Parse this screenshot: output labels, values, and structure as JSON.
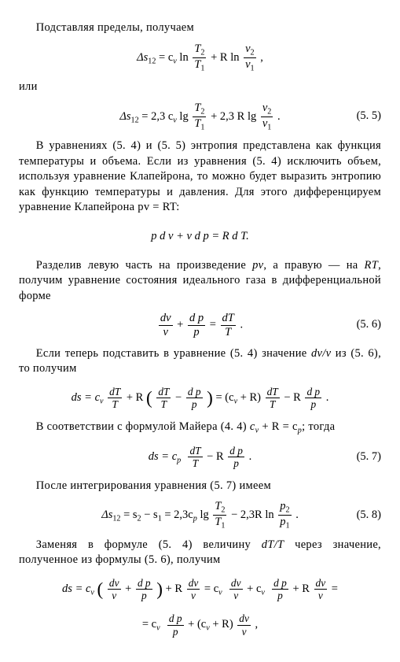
{
  "p1": "Подставляя пределы, получаем",
  "eq1_lhs": "Δs",
  "eq1_sub": "12",
  "eq1_a": "= c",
  "eq1_v": "v",
  "eq1_ln": " ln ",
  "eq1_T2": "T",
  "eq1_2": "2",
  "eq1_T1": "T",
  "eq1_1": "1",
  "eq1_plus": " + R ln ",
  "eq1_v2": "v",
  "eq1_v1": "v",
  "eq1_tail": " ,",
  "p2": "или",
  "eq2_a": "= 2,3 c",
  "eq2_lg": " lg ",
  "eq2_plus": " + 2,3 R lg ",
  "eq2_tail": " .",
  "eq2_num": "(5. 5)",
  "p3": "В уравнениях (5. 4) и (5. 5) энтропия представлена как функция температуры и объема. Если из уравнения (5. 4) исключить объем, используя уравнение Клапейрона, то можно будет выразить энтропию как функцию температуры и давления. Для этого дифференцируем уравнение Клапейрона pv = RT:",
  "eq3": "p d v + v d p = R d T.",
  "p4a": "Разделив левую часть на произведение ",
  "p4b": "pv",
  "p4c": ", а правую — на ",
  "p4d": "RT",
  "p4e": ", получим уравнение состояния идеального газа в дифференциальной форме",
  "eq4_dv": "dv",
  "eq4_v": "v",
  "eq4_plus": " + ",
  "eq4_dp": "d p",
  "eq4_p": "p",
  "eq4_eq": " = ",
  "eq4_dT": "dT",
  "eq4_T": "T",
  "eq4_tail": " .",
  "eq4_num": "(5. 6)",
  "p5a": "Если теперь подставить в уравнение (5. 4) значение ",
  "p5b": "dv/v",
  "p5c": " из (5. 6), то получим",
  "eq5_ds": "ds = c",
  "eq5_plusR": " + R ",
  "eq5_minus": " − ",
  "eq5_eqmid": " = (c",
  "eq5_plusR2": " + R) ",
  "eq5_minusR": " − R ",
  "eq5_tail": " .",
  "p6a": "В соответствии с формулой Майера (4. 4) ",
  "p6b": "c",
  "p6c": " + R = c",
  "p6d": "; тогда",
  "eq6_ds": "ds = c",
  "eq6_p": "p",
  "eq6_minusR": " − R ",
  "eq6_tail": " .",
  "eq6_num": "(5. 7)",
  "p7": "После интегрирования уравнения (5. 7) имеем",
  "eq7_a": "= s",
  "eq7_s2": "2",
  "eq7_minus": " − s",
  "eq7_s1": "1",
  "eq7_b": " = 2,3c",
  "eq7_lg": " lg ",
  "eq7_mid": " − 2,3R ln ",
  "eq7_p2": "p",
  "eq7_p1": "p",
  "eq7_tail": " .",
  "eq7_num": "(5. 8)",
  "p8a": "Заменяя в формуле (5. 4) величину ",
  "p8b": "dT/T",
  "p8c": " через значение, полученное из формулы (5. 6), получим",
  "eq8_ds": "ds = c",
  "eq8_plus": " + ",
  "eq8_plusR": " + R ",
  "eq8_eq": " = c",
  "eq8_plusc": " + c",
  "eq8_eqtail": " =",
  "eq9_pre": "= c",
  "eq9_plus": " + (c",
  "eq9_plusR": " + R) ",
  "eq9_tail": " ,"
}
